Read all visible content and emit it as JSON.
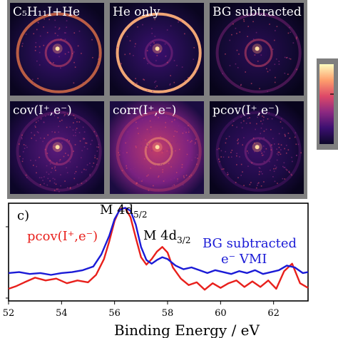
{
  "panels": [
    {
      "label": "C₅H₁₁I+He",
      "seed": 1,
      "style": "ring"
    },
    {
      "label": "He only",
      "seed": 2,
      "style": "ringbright"
    },
    {
      "label": "BG subtracted",
      "seed": 3,
      "style": "faint"
    },
    {
      "label": "cov(I⁺,e⁻)",
      "seed": 4,
      "style": "noisy"
    },
    {
      "label": "corr(I⁺,e⁻)",
      "seed": 5,
      "style": "corr"
    },
    {
      "label": "pcov(I⁺,e⁻)",
      "seed": 6,
      "style": "noisydark"
    }
  ],
  "colorbar": {
    "colors": [
      "#0d0829",
      "#3b0f70",
      "#8c2981",
      "#de4968",
      "#fe9f6d",
      "#fcfdbf"
    ]
  },
  "panel_c_label": "c)",
  "annotations": {
    "peak1": "M 4d",
    "peak1_sub": "5/2",
    "peak2": "M 4d",
    "peak2_sub": "3/2",
    "red_legend": "pcov(I⁺,e⁻)",
    "blue_legend_line1": "BG subtracted",
    "blue_legend_line2": "e⁻ VMI"
  },
  "chart_data": {
    "type": "line",
    "xlabel": "Binding Energy / eV",
    "xlim": [
      52,
      63.3
    ],
    "ylim": [
      0,
      1.05
    ],
    "xticks": [
      "52",
      "54",
      "56",
      "58",
      "60",
      "62"
    ],
    "series": [
      {
        "name": "pcov(I⁺,e⁻)",
        "color": "#e8201c",
        "x": [
          52.0,
          52.3,
          52.6,
          53.0,
          53.4,
          53.8,
          54.2,
          54.6,
          55.0,
          55.3,
          55.6,
          55.8,
          56.0,
          56.2,
          56.4,
          56.6,
          56.8,
          57.0,
          57.2,
          57.4,
          57.6,
          57.8,
          58.0,
          58.2,
          58.5,
          58.8,
          59.1,
          59.4,
          59.7,
          60.0,
          60.3,
          60.6,
          60.9,
          61.2,
          61.5,
          61.8,
          62.1,
          62.4,
          62.7,
          63.0,
          63.3
        ],
        "y": [
          0.13,
          0.16,
          0.2,
          0.25,
          0.22,
          0.24,
          0.19,
          0.22,
          0.2,
          0.28,
          0.45,
          0.64,
          0.86,
          0.99,
          1.0,
          0.9,
          0.68,
          0.47,
          0.39,
          0.45,
          0.53,
          0.58,
          0.52,
          0.36,
          0.24,
          0.17,
          0.2,
          0.12,
          0.19,
          0.14,
          0.19,
          0.22,
          0.15,
          0.21,
          0.15,
          0.22,
          0.13,
          0.32,
          0.4,
          0.19,
          0.14
        ]
      },
      {
        "name": "BG subtracted e⁻ VMI",
        "color": "#1a1ad6",
        "x": [
          52.0,
          52.4,
          52.8,
          53.2,
          53.6,
          54.0,
          54.4,
          54.8,
          55.2,
          55.5,
          55.8,
          56.0,
          56.2,
          56.4,
          56.6,
          56.8,
          57.0,
          57.2,
          57.4,
          57.6,
          57.8,
          58.0,
          58.3,
          58.6,
          58.9,
          59.2,
          59.5,
          59.8,
          60.1,
          60.4,
          60.7,
          61.0,
          61.3,
          61.6,
          61.9,
          62.2,
          62.5,
          62.8,
          63.1,
          63.3
        ],
        "y": [
          0.3,
          0.31,
          0.29,
          0.3,
          0.28,
          0.3,
          0.31,
          0.33,
          0.37,
          0.5,
          0.7,
          0.88,
          0.98,
          1.0,
          0.97,
          0.82,
          0.58,
          0.44,
          0.4,
          0.44,
          0.47,
          0.45,
          0.38,
          0.34,
          0.36,
          0.33,
          0.3,
          0.33,
          0.31,
          0.29,
          0.32,
          0.3,
          0.33,
          0.29,
          0.31,
          0.33,
          0.38,
          0.36,
          0.3,
          0.31
        ]
      }
    ]
  }
}
